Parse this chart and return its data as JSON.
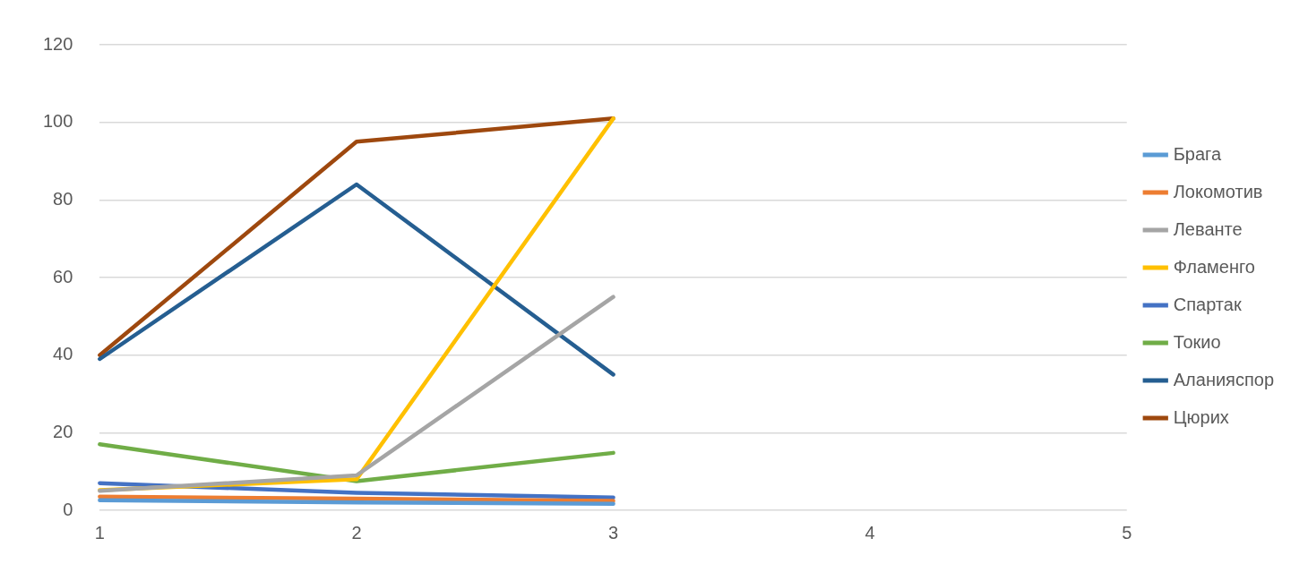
{
  "chart_data": {
    "type": "line",
    "categories": [
      "1",
      "2",
      "3",
      "4",
      "5"
    ],
    "series": [
      {
        "name": "Брага",
        "color": "#5b9bd5",
        "values": [
          2.6,
          2,
          1.7,
          null,
          null
        ]
      },
      {
        "name": "Локомотив",
        "color": "#ed7d31",
        "values": [
          3.5,
          3,
          2.4,
          null,
          null
        ]
      },
      {
        "name": "Леванте",
        "color": "#a5a5a5",
        "values": [
          5,
          9,
          55,
          null,
          null
        ]
      },
      {
        "name": "Фламенго",
        "color": "#ffc000",
        "values": [
          5.2,
          8,
          101,
          null,
          null
        ]
      },
      {
        "name": "Спартак",
        "color": "#4472c4",
        "values": [
          7,
          4.5,
          3.3,
          null,
          null
        ]
      },
      {
        "name": "Токио",
        "color": "#70ad47",
        "values": [
          17,
          7.5,
          14.8,
          null,
          null
        ]
      },
      {
        "name": "Аланияспор",
        "color": "#255e91",
        "values": [
          39,
          84,
          35,
          null,
          null
        ]
      },
      {
        "name": "Цюрих",
        "color": "#9e480e",
        "values": [
          40,
          95,
          101,
          null,
          null
        ]
      }
    ],
    "ylim": [
      0,
      120
    ],
    "yticks": [
      0,
      20,
      40,
      60,
      80,
      100,
      120
    ],
    "grid": "y",
    "legend": "right",
    "marker": "none",
    "line_style": "solid"
  }
}
